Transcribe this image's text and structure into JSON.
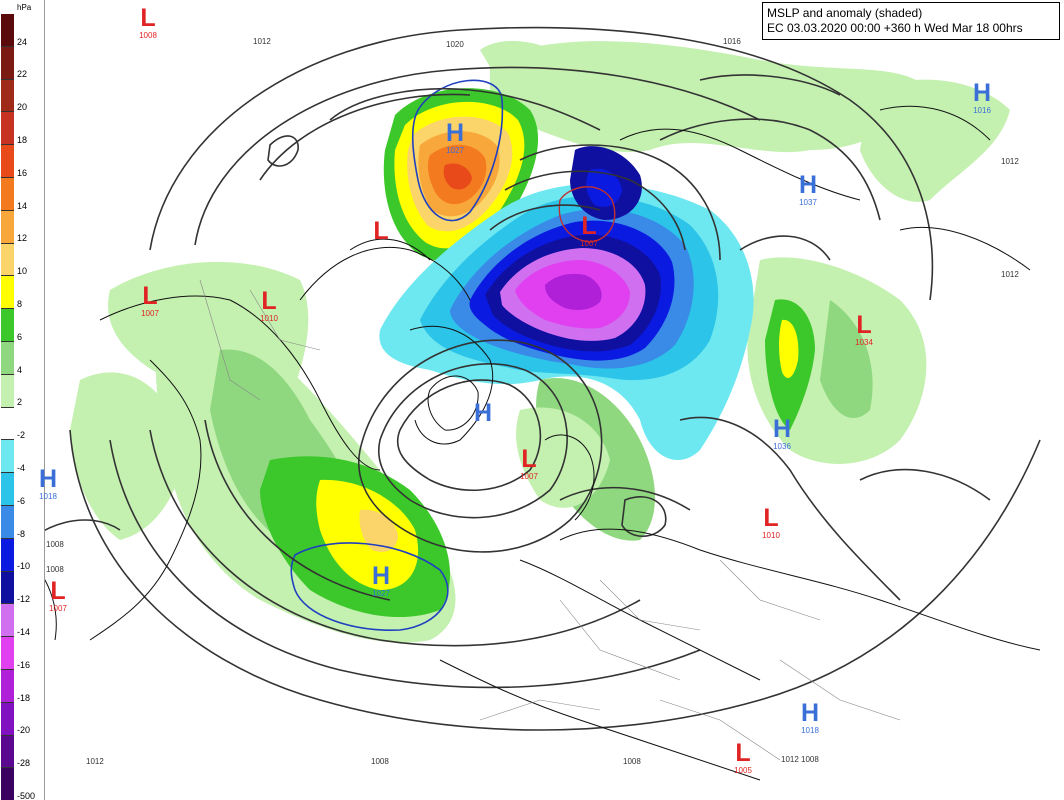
{
  "title": {
    "line1": "MSLP and anomaly (shaded)",
    "line2": "EC 03.03.2020 00:00 +360 h Wed Mar 18 00hrs"
  },
  "legend": {
    "unit": "hPa",
    "bins": [
      {
        "label": "24",
        "color": "#5a0a0a"
      },
      {
        "label": "22",
        "color": "#7a1a12"
      },
      {
        "label": "20",
        "color": "#a02a1a"
      },
      {
        "label": "18",
        "color": "#c83222"
      },
      {
        "label": "16",
        "color": "#e84a1a"
      },
      {
        "label": "14",
        "color": "#f47a20"
      },
      {
        "label": "12",
        "color": "#f8a83a"
      },
      {
        "label": "10",
        "color": "#fbd46a"
      },
      {
        "label": "8",
        "color": "#ffff00"
      },
      {
        "label": "6",
        "color": "#3cc82a"
      },
      {
        "label": "4",
        "color": "#8fd880"
      },
      {
        "label": "2",
        "color": "#c4f0b0"
      },
      {
        "label": "-2",
        "color": "#ffffff"
      },
      {
        "label": "-4",
        "color": "#6ee8f0"
      },
      {
        "label": "-6",
        "color": "#2cc4e8"
      },
      {
        "label": "-8",
        "color": "#3a8ae8"
      },
      {
        "label": "-10",
        "color": "#0a1ae0"
      },
      {
        "label": "-12",
        "color": "#1010a0"
      },
      {
        "label": "-14",
        "color": "#d070f0"
      },
      {
        "label": "-16",
        "color": "#e040f0"
      },
      {
        "label": "-18",
        "color": "#b020d8"
      },
      {
        "label": "-20",
        "color": "#8010c0"
      },
      {
        "label": "-28",
        "color": "#5a0890"
      },
      {
        "label": "-500",
        "color": "#3a0060"
      }
    ]
  },
  "centres": [
    {
      "type": "L",
      "value": "1008"
    },
    {
      "type": "H",
      "value": "1027"
    },
    {
      "type": "L",
      "value": ""
    },
    {
      "type": "L",
      "value": "1007"
    },
    {
      "type": "L",
      "value": "1010"
    },
    {
      "type": "L",
      "value": "1007"
    },
    {
      "type": "H",
      "value": ""
    },
    {
      "type": "L",
      "value": "1007"
    },
    {
      "type": "H",
      "value": "1027"
    },
    {
      "type": "L",
      "value": "1007"
    },
    {
      "type": "H",
      "value": "1016"
    },
    {
      "type": "H",
      "value": "1037"
    },
    {
      "type": "L",
      "value": "1034"
    },
    {
      "type": "H",
      "value": "1036"
    },
    {
      "type": "L",
      "value": "1010"
    },
    {
      "type": "H",
      "value": "1018"
    },
    {
      "type": "L",
      "value": "1005"
    },
    {
      "type": "H",
      "value": "1018"
    }
  ],
  "isobar_labels": [
    "1012",
    "1020",
    "1016",
    "1012",
    "1008",
    "1008",
    "1012",
    "1008",
    "1012",
    "1008",
    "1012",
    "1008"
  ]
}
